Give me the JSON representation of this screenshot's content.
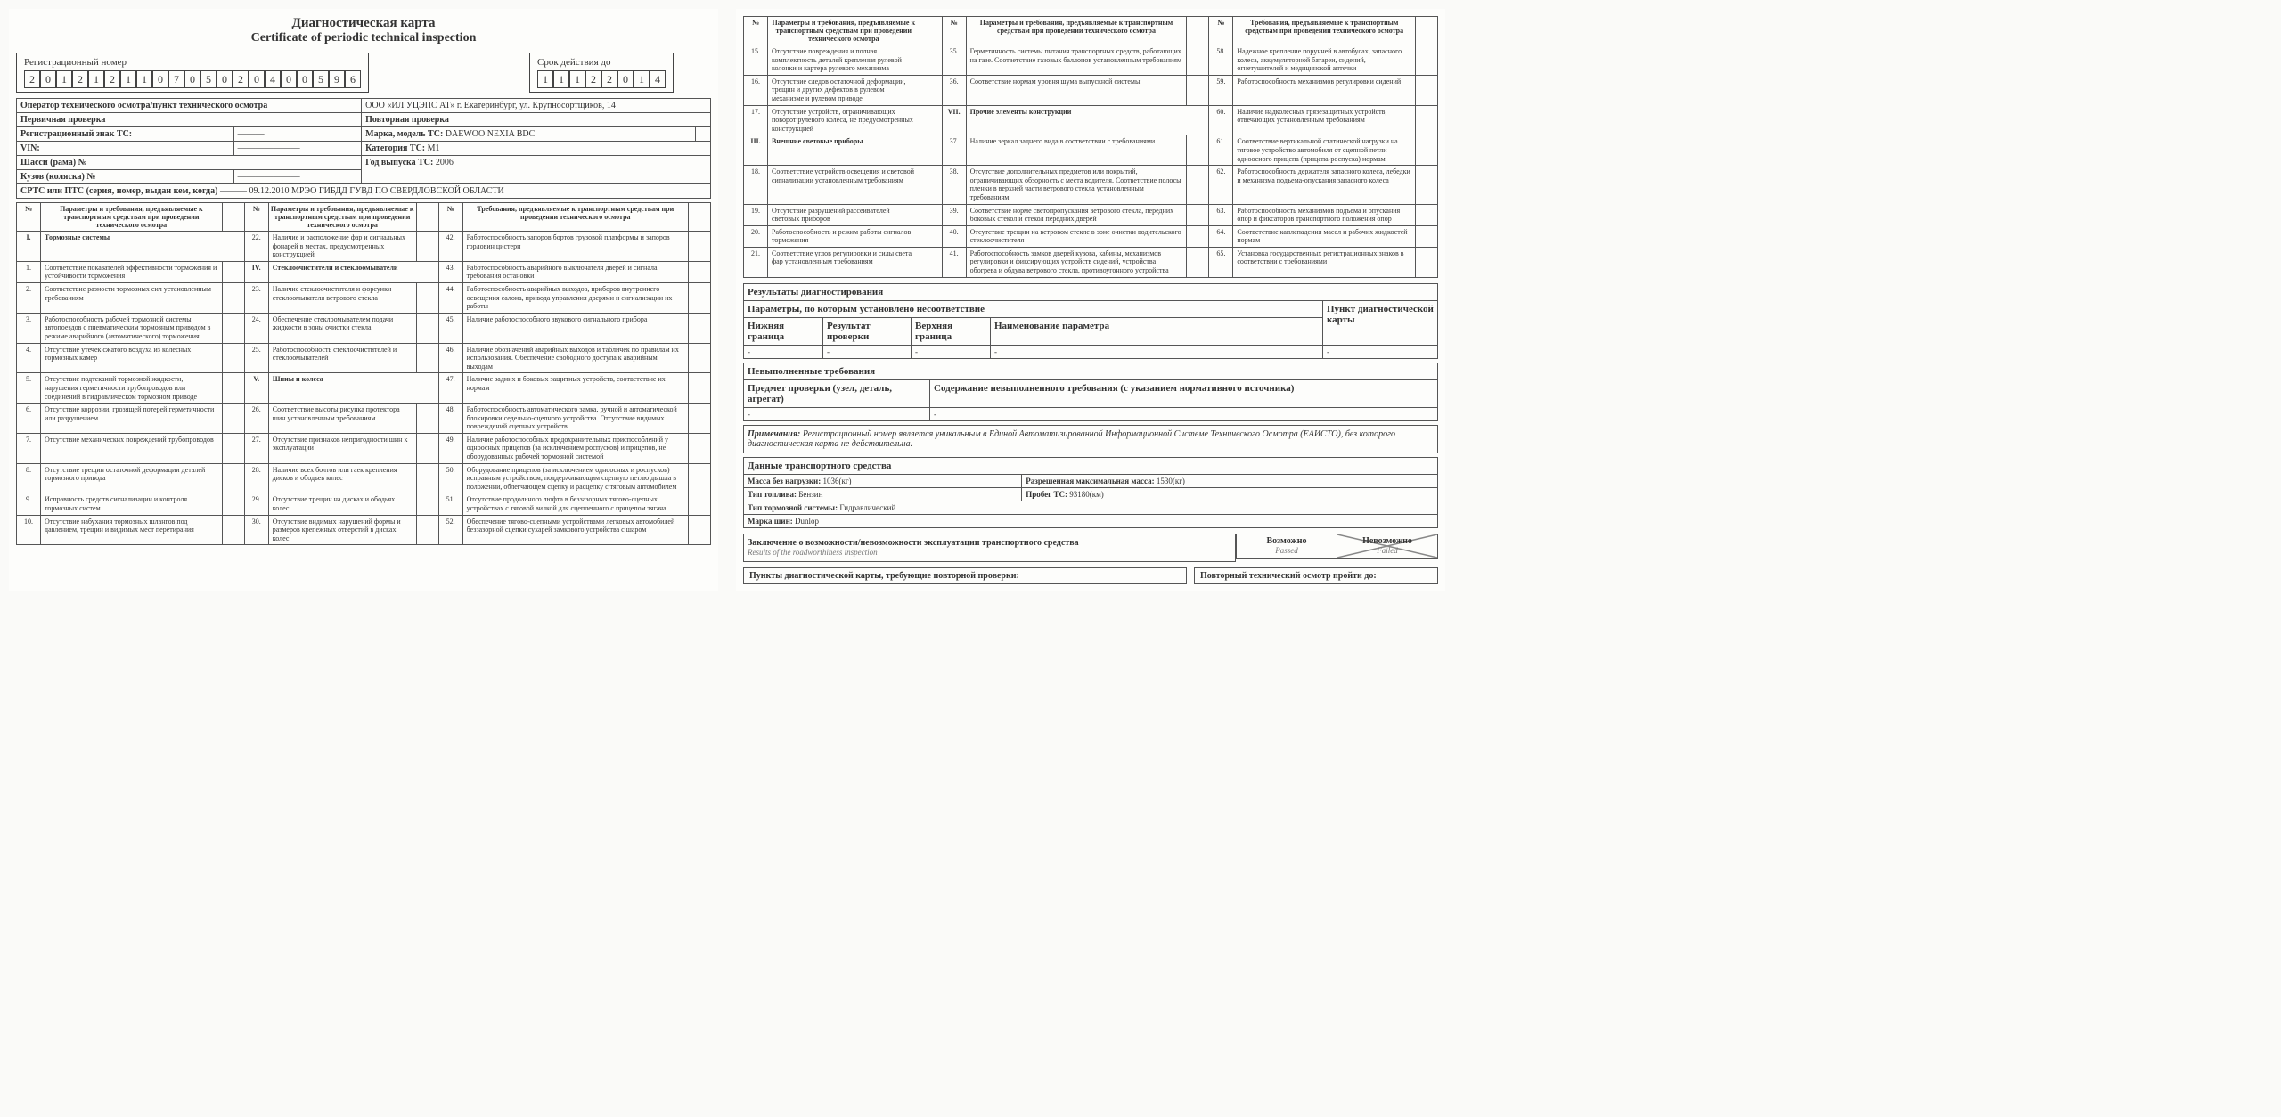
{
  "title_ru": "Диагностическая карта",
  "title_en": "Certificate of periodic technical inspection",
  "reg_number_label": "Регистрационный номер",
  "reg_number_digits": [
    "2",
    "0",
    "1",
    "2",
    "1",
    "2",
    "1",
    "1",
    "0",
    "7",
    "0",
    "5",
    "0",
    "2",
    "0",
    "4",
    "0",
    "0",
    "5",
    "9",
    "6"
  ],
  "validity_label": "Срок действия до",
  "validity_digits": [
    "1",
    "1",
    "1",
    "2",
    "2",
    "0",
    "1",
    "4"
  ],
  "operator_label": "Оператор технического осмотра/пункт технического осмотра",
  "operator_value": "ООО «ИЛ УЦЭПС АТ» г. Екатеринбург, ул. Крупносортщиков, 14",
  "primary_label": "Первичная проверка",
  "repeat_label": "Повторная проверка",
  "reg_sign_label": "Регистрационный знак ТС:",
  "reg_sign_value": "———",
  "make_label": "Марка, модель ТС:",
  "make_value": "DAEWOO NEXIA BDC",
  "vin_label": "VIN:",
  "vin_value": "———————",
  "category_label": "Категория ТС:",
  "category_value": "M1",
  "chassis_label": "Шасси (рама) №",
  "year_label": "Год выпуска ТС:",
  "year_value": "2006",
  "body_label": "Кузов (коляска) №",
  "body_value": "———————",
  "srts_label": "СРТС или ПТС (серия, номер, выдан кем, когда)",
  "srts_value": "——— 09.12.2010 МРЭО ГИБДД ГУВД ПО СВЕРДЛОВСКОЙ ОБЛАСТИ",
  "col_num": "№",
  "col_req": "Параметры и требования, предъявляемые к транспортным средствам при проведении технического осмотра",
  "col_req2": "Требования, предъявляемые к транспортным средствам при проведении технического осмотра",
  "left_rows": [
    {
      "n": "I.",
      "t": "Тормозные системы",
      "sec": true
    },
    {
      "n": "1.",
      "t": "Соответствие показателей эффективности торможения и устойчивости торможения"
    },
    {
      "n": "2.",
      "t": "Соответствие разности тормозных сил установленным требованиям"
    },
    {
      "n": "3.",
      "t": "Работоспособность рабочей тормозной системы автопоездов с пневматическим тормозным приводом в режиме аварийного (автоматического) торможения"
    },
    {
      "n": "4.",
      "t": "Отсутствие утечек сжатого воздуха из колесных тормозных камер"
    },
    {
      "n": "5.",
      "t": "Отсутствие подтеканий тормозной жидкости, нарушения герметичности трубопроводов или соединений в гидравлическом тормозном приводе"
    },
    {
      "n": "6.",
      "t": "Отсутствие коррозии, грозящей потерей герметичности или разрушением"
    },
    {
      "n": "7.",
      "t": "Отсутствие механических повреждений трубопроводов"
    },
    {
      "n": "8.",
      "t": "Отсутствие трещин остаточной деформации деталей тормозного привода"
    },
    {
      "n": "9.",
      "t": "Исправность средств сигнализации и контроля тормозных систем"
    },
    {
      "n": "10.",
      "t": "Отсутствие набухания тормозных шлангов под давлением, трещин и видимых мест перетирания"
    }
  ],
  "mid_rows": [
    {
      "n": "22.",
      "t": "Наличие и расположение фар и сигнальных фонарей в местах, предусмотренных конструкцией"
    },
    {
      "n": "IV.",
      "t": "Стеклоочистители и стеклоомыватели",
      "sec": true
    },
    {
      "n": "23.",
      "t": "Наличие стеклоочистителя и форсунки стеклоомывателя ветрового стекла"
    },
    {
      "n": "24.",
      "t": "Обеспечение стеклоомывателем подачи жидкости в зоны очистки стекла"
    },
    {
      "n": "25.",
      "t": "Работоспособность стеклоочистителей и стеклоомывателей"
    },
    {
      "n": "V.",
      "t": "Шины и колеса",
      "sec": true
    },
    {
      "n": "26.",
      "t": "Соответствие высоты рисунка протектора шин установленным требованиям"
    },
    {
      "n": "27.",
      "t": "Отсутствие признаков непригодности шин к эксплуатации"
    },
    {
      "n": "28.",
      "t": "Наличие всех болтов или гаек крепления дисков и ободьев колес"
    },
    {
      "n": "29.",
      "t": "Отсутствие трещин на дисках и ободьях колес"
    },
    {
      "n": "30.",
      "t": "Отсутствие видимых нарушений формы и размеров крепежных отверстий в дисках колес"
    }
  ],
  "right_rows": [
    {
      "n": "42.",
      "t": "Работоспособность запоров бортов грузовой платформы и запоров горловин цистерн"
    },
    {
      "n": "43.",
      "t": "Работоспособность аварийного выключателя дверей и сигнала требования остановки"
    },
    {
      "n": "44.",
      "t": "Работоспособность аварийных выходов, приборов внутреннего освещения салона, привода управления дверями и сигнализации их работы"
    },
    {
      "n": "45.",
      "t": "Наличие работоспособного звукового сигнального прибора"
    },
    {
      "n": "46.",
      "t": "Наличие обозначений аварийных выходов и табличек по правилам их использования. Обеспечение свободного доступа к аварийным выходам"
    },
    {
      "n": "47.",
      "t": "Наличие задних и боковых защитных устройств, соответствие их нормам"
    },
    {
      "n": "48.",
      "t": "Работоспособность автоматического замка, ручной и автоматической блокировки седельно-сцепного устройства. Отсутствие видимых повреждений сцепных устройств"
    },
    {
      "n": "49.",
      "t": "Наличие работоспособных предохранительных приспособлений у одноосных прицепов (за исключением роспусков) и прицепов, не оборудованных рабочей тормозной системой"
    },
    {
      "n": "50.",
      "t": "Оборудование прицепов (за исключением одноосных и роспусков) исправным устройством, поддерживающим сцепную петлю дышла в положении, облегчающем сцепку и расцепку с тяговым автомобилем"
    },
    {
      "n": "51.",
      "t": "Отсутствие продольного люфта в беззазорных тягово-сцепных устройствах с тяговой вилкой для сцепленного с прицепом тягача"
    },
    {
      "n": "52.",
      "t": "Обеспечение тягово-сцепными устройствами легковых автомобилей беззазорной сцепки сухарей замкового устройства с шаром"
    }
  ],
  "p2_col1": [
    {
      "n": "15.",
      "t": "Отсутствие повреждения и полная комплектность деталей крепления рулевой колонки и картера рулевого механизма"
    },
    {
      "n": "16.",
      "t": "Отсутствие следов остаточной деформации, трещин и других дефектов в рулевом механизме и рулевом приводе"
    },
    {
      "n": "17.",
      "t": "Отсутствие устройств, ограничивающих поворот рулевого колеса, не предусмотренных конструкцией"
    },
    {
      "n": "III.",
      "t": "Внешние световые приборы",
      "sec": true
    },
    {
      "n": "18.",
      "t": "Соответствие устройств освещения и световой сигнализации установленным требованиям"
    },
    {
      "n": "19.",
      "t": "Отсутствие разрушений рассеивателей световых приборов"
    },
    {
      "n": "20.",
      "t": "Работоспособность и режим работы сигналов торможения"
    },
    {
      "n": "21.",
      "t": "Соответствие углов регулировки и силы света фар установленным требованиям"
    }
  ],
  "p2_col2": [
    {
      "n": "35.",
      "t": "Герметичность системы питания транспортных средств, работающих на газе. Соответствие газовых баллонов установленным требованиям"
    },
    {
      "n": "36.",
      "t": "Соответствие нормам уровня шума выпускной системы"
    },
    {
      "n": "VII.",
      "t": "Прочие элементы конструкции",
      "sec": true
    },
    {
      "n": "37.",
      "t": "Наличие зеркал заднего вида в соответствии с требованиями"
    },
    {
      "n": "38.",
      "t": "Отсутствие дополнительных предметов или покрытий, ограничивающих обзорность с места водителя. Соответствие полосы пленки в верхней части ветрового стекла установленным требованиям"
    },
    {
      "n": "39.",
      "t": "Соответствие норме светопропускания ветрового стекла, передних боковых стекол и стекол передних дверей"
    },
    {
      "n": "40.",
      "t": "Отсутствие трещин на ветровом стекле в зоне очистки водительского стеклоочистителя"
    },
    {
      "n": "41.",
      "t": "Работоспособность замков дверей кузова, кабины, механизмов регулировки и фиксирующих устройств сидений, устройства обогрева и обдува ветрового стекла, противоугонного устройства"
    }
  ],
  "p2_col3": [
    {
      "n": "58.",
      "t": "Надежное крепление поручней в автобусах, запасного колеса, аккумуляторной батареи, сидений, огнетушителей и медицинской аптечки"
    },
    {
      "n": "59.",
      "t": "Работоспособность механизмов регулировки сидений"
    },
    {
      "n": "60.",
      "t": "Наличие надколесных грязезащитных устройств, отвечающих установленным требованиям"
    },
    {
      "n": "61.",
      "t": "Соответствие вертикальной статической нагрузки на тяговое устройство автомобиля от сцепной петли одноосного прицепа (прицепа-роспуска) нормам"
    },
    {
      "n": "62.",
      "t": "Работоспособность держателя запасного колеса, лебедки и механизма подъема-опускания запасного колеса"
    },
    {
      "n": "63.",
      "t": "Работоспособность механизмов подъема и опускания опор и фиксаторов транспортного положения опор"
    },
    {
      "n": "64.",
      "t": "Соответствие каплепадения масел и рабочих жидкостей нормам"
    },
    {
      "n": "65.",
      "t": "Установка государственных регистрационных знаков в соответствии с требованиями"
    }
  ],
  "results_header": "Результаты диагностирования",
  "params_header": "Параметры, по которым установлено несоответствие",
  "point_header": "Пункт диагностической карты",
  "lower_bound": "Нижняя граница",
  "check_result": "Результат проверки",
  "upper_bound": "Верхняя граница",
  "param_name": "Наименование параметра",
  "dash": "-",
  "unmet_header": "Невыполненные требования",
  "unmet_subj": "Предмет проверки (узел, деталь, агрегат)",
  "unmet_content": "Содержание невыполненного требования (с указанием нормативного источника)",
  "note_label": "Примечания:",
  "note_text": "Регистрационный номер является уникальным в Единой Автоматизированной Информационной Системе Технического Осмотра (ЕАИСТО), без которого диагностическая карта не действительна.",
  "vehicle_data_header": "Данные транспортного средства",
  "mass_unladen_label": "Масса без нагрузки:",
  "mass_unladen_value": "1036(кг)",
  "mass_max_label": "Разрешенная максимальная масса:",
  "mass_max_value": "1530(кг)",
  "fuel_label": "Тип топлива:",
  "fuel_value": "Бензин",
  "mileage_label": "Пробег ТС:",
  "mileage_value": "93180(км)",
  "brake_label": "Тип тормозной системы:",
  "brake_value": "Гидравлический",
  "tyre_label": "Марка шин:",
  "tyre_value": "Dunlop",
  "conclusion_label": "Заключение о возможности/невозможности эксплуатации транспортного средства",
  "conclusion_sub": "Results of the roadworthiness inspection",
  "possible_ru": "Возможно",
  "possible_en": "Passed",
  "impossible_ru": "Невозможно",
  "impossible_en": "Failed",
  "recheck_label": "Пункты диагностической карты, требующие повторной проверки:",
  "retry_label": "Повторный технический осмотр пройти до:"
}
